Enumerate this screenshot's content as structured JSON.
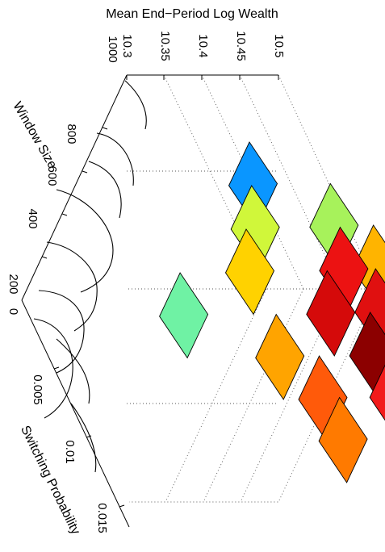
{
  "chart_data": {
    "type": "surface3d",
    "zlabel": "Mean End−Period Log Wealth",
    "xlabel": "Switching Probability",
    "ylabel": "Window Size",
    "zticks": [
      "10.3",
      "10.35",
      "10.4",
      "10.45",
      "10.5"
    ],
    "xticks": [
      "0",
      "0.005",
      "0.01",
      "0.015"
    ],
    "yticks": [
      "200",
      "400",
      "600",
      "800",
      "1000"
    ],
    "zlim": [
      10.3,
      10.5
    ],
    "grid": true,
    "colormap": "jet",
    "cells": [
      {
        "x": [
          0.0,
          0.004
        ],
        "y": [
          800,
          1000
        ],
        "z": 10.35,
        "color": "#0a96ff"
      },
      {
        "x": [
          0.004,
          0.008
        ],
        "y": [
          800,
          1000
        ],
        "z": 10.42,
        "color": "#a7f25b"
      },
      {
        "x": [
          0.008,
          0.012
        ],
        "y": [
          800,
          1000
        ],
        "z": 10.44,
        "color": "#ffb400"
      },
      {
        "x": [
          0.012,
          0.016
        ],
        "y": [
          800,
          1000
        ],
        "z": 10.45,
        "color": "#ff9400"
      },
      {
        "x": [
          0.0,
          0.004
        ],
        "y": [
          600,
          800
        ],
        "z": 10.38,
        "color": "#d0f73a"
      },
      {
        "x": [
          0.004,
          0.008
        ],
        "y": [
          600,
          800
        ],
        "z": 10.46,
        "color": "#ec1212"
      },
      {
        "x": [
          0.008,
          0.012
        ],
        "y": [
          600,
          800
        ],
        "z": 10.47,
        "color": "#e01010"
      },
      {
        "x": [
          0.012,
          0.016
        ],
        "y": [
          600,
          800
        ],
        "z": 10.47,
        "color": "#8f0000"
      },
      {
        "x": [
          0.0,
          0.004
        ],
        "y": [
          400,
          600
        ],
        "z": 10.4,
        "color": "#ffd200"
      },
      {
        "x": [
          0.004,
          0.008
        ],
        "y": [
          400,
          600
        ],
        "z": 10.47,
        "color": "#d50a0a"
      },
      {
        "x": [
          0.008,
          0.012
        ],
        "y": [
          400,
          600
        ],
        "z": 10.49,
        "color": "#8c0000"
      },
      {
        "x": [
          0.012,
          0.016
        ],
        "y": [
          400,
          600
        ],
        "z": 10.48,
        "color": "#f21b1b"
      },
      {
        "x": [
          0.0,
          0.004
        ],
        "y": [
          200,
          400
        ],
        "z": 10.34,
        "color": "#6ff2a4"
      },
      {
        "x": [
          0.004,
          0.008
        ],
        "y": [
          200,
          400
        ],
        "z": 10.43,
        "color": "#ffa400"
      },
      {
        "x": [
          0.008,
          0.012
        ],
        "y": [
          200,
          400
        ],
        "z": 10.45,
        "color": "#ff5a0a"
      },
      {
        "x": [
          0.012,
          0.016
        ],
        "y": [
          200,
          400
        ],
        "z": 10.44,
        "color": "#ff7a00"
      }
    ]
  }
}
